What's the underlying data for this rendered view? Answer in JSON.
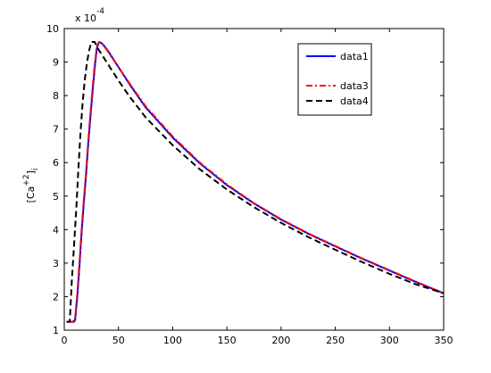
{
  "chart_data": {
    "type": "line",
    "title": "",
    "xlabel": "",
    "ylabel": "[Ca+2]i",
    "ylabel_parts": {
      "base": "[Ca",
      "sup": "+2",
      "close": "]",
      "sub": "i"
    },
    "exponent_label": {
      "base": "x 10",
      "exp": "-4"
    },
    "xlim": [
      0,
      350
    ],
    "ylim": [
      1,
      10
    ],
    "x_ticks": [
      0,
      50,
      100,
      150,
      200,
      250,
      300,
      350
    ],
    "y_ticks": [
      1,
      2,
      3,
      4,
      5,
      6,
      7,
      8,
      9,
      10
    ],
    "grid": false,
    "legend_position": "top-right",
    "series": [
      {
        "name": "data1",
        "color": "#0000ff",
        "style": "solid",
        "points": [
          [
            4,
            1.25
          ],
          [
            9,
            1.25
          ],
          [
            10,
            1.3
          ],
          [
            12,
            2.0
          ],
          [
            14,
            2.9
          ],
          [
            16,
            3.9
          ],
          [
            18,
            4.8
          ],
          [
            20,
            5.6
          ],
          [
            22,
            6.5
          ],
          [
            24,
            7.3
          ],
          [
            26,
            8.1
          ],
          [
            28,
            8.8
          ],
          [
            30,
            9.4
          ],
          [
            32,
            9.6
          ],
          [
            35,
            9.55
          ],
          [
            40,
            9.35
          ],
          [
            50,
            8.85
          ],
          [
            60,
            8.35
          ],
          [
            75,
            7.65
          ],
          [
            100,
            6.75
          ],
          [
            125,
            5.98
          ],
          [
            150,
            5.33
          ],
          [
            175,
            4.78
          ],
          [
            200,
            4.3
          ],
          [
            225,
            3.88
          ],
          [
            250,
            3.5
          ],
          [
            275,
            3.13
          ],
          [
            300,
            2.78
          ],
          [
            325,
            2.43
          ],
          [
            350,
            2.1
          ]
        ]
      },
      {
        "name": "data3",
        "color": "#ff0000",
        "style": "dashdot",
        "points": [
          [
            4,
            1.25
          ],
          [
            8,
            1.25
          ],
          [
            10,
            1.35
          ],
          [
            12,
            2.1
          ],
          [
            14,
            3.0
          ],
          [
            16,
            4.0
          ],
          [
            18,
            4.9
          ],
          [
            20,
            5.7
          ],
          [
            22,
            6.6
          ],
          [
            24,
            7.4
          ],
          [
            26,
            8.2
          ],
          [
            28,
            8.9
          ],
          [
            30,
            9.45
          ],
          [
            32,
            9.6
          ],
          [
            35,
            9.55
          ],
          [
            40,
            9.33
          ],
          [
            50,
            8.85
          ],
          [
            60,
            8.37
          ],
          [
            75,
            7.68
          ],
          [
            100,
            6.78
          ],
          [
            125,
            6.0
          ],
          [
            150,
            5.35
          ],
          [
            175,
            4.79
          ],
          [
            200,
            4.31
          ],
          [
            225,
            3.89
          ],
          [
            250,
            3.51
          ],
          [
            275,
            3.14
          ],
          [
            300,
            2.79
          ],
          [
            325,
            2.44
          ],
          [
            350,
            2.1
          ]
        ]
      },
      {
        "name": "data4",
        "color": "#000000",
        "style": "dashed",
        "points": [
          [
            2,
            1.25
          ],
          [
            5,
            1.25
          ],
          [
            7,
            2.5
          ],
          [
            9,
            3.5
          ],
          [
            11,
            4.6
          ],
          [
            13,
            5.8
          ],
          [
            15,
            6.9
          ],
          [
            17,
            7.8
          ],
          [
            19,
            8.5
          ],
          [
            21,
            9.0
          ],
          [
            23,
            9.35
          ],
          [
            25,
            9.6
          ],
          [
            28,
            9.6
          ],
          [
            32,
            9.35
          ],
          [
            40,
            8.95
          ],
          [
            50,
            8.45
          ],
          [
            60,
            7.98
          ],
          [
            75,
            7.35
          ],
          [
            100,
            6.52
          ],
          [
            125,
            5.8
          ],
          [
            150,
            5.2
          ],
          [
            175,
            4.67
          ],
          [
            200,
            4.2
          ],
          [
            225,
            3.78
          ],
          [
            250,
            3.4
          ],
          [
            275,
            3.03
          ],
          [
            300,
            2.68
          ],
          [
            325,
            2.36
          ],
          [
            350,
            2.1
          ]
        ]
      }
    ]
  }
}
